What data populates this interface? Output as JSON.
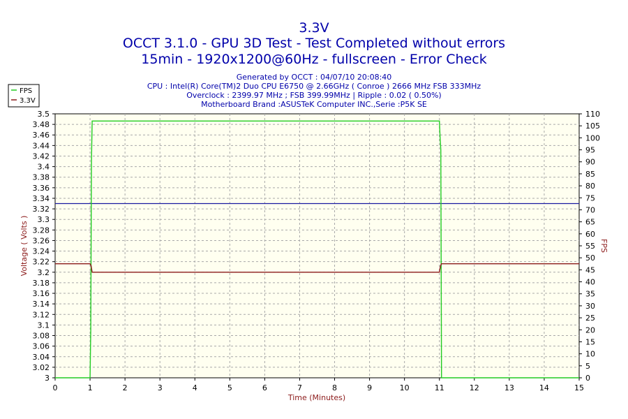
{
  "chart_data": {
    "type": "line",
    "title": "3.3V",
    "subtitle_lines": [
      "OCCT 3.1.0 - GPU 3D Test - Test Completed without errors",
      "15min - 1920x1200@60Hz - fullscreen - Error Check"
    ],
    "info_lines": [
      "Generated by OCCT : 04/07/10 20:08:40",
      "CPU : Intel(R) Core(TM)2 Duo CPU E6750 @ 2.66GHz ( Conroe ) 2666 MHz FSB 333MHz",
      "Overclock : 2399.97 MHz ; FSB 399.99MHz | Ripple : 0.02 ( 0.50%)",
      "Motherboard Brand :ASUSTeK Computer INC.,Serie :P5K SE"
    ],
    "xlabel": "Time (Minutes)",
    "ylabel": "Voltage ( Volts )",
    "y2label": "FPS",
    "xlim": [
      0,
      15
    ],
    "ylim": [
      3.0,
      3.5
    ],
    "y2lim": [
      0,
      110
    ],
    "xticks": [
      "0",
      "1",
      "2",
      "3",
      "4",
      "5",
      "6",
      "7",
      "8",
      "9",
      "10",
      "11",
      "12",
      "13",
      "14",
      "15"
    ],
    "yticks": [
      "3",
      "3.02",
      "3.04",
      "3.06",
      "3.08",
      "3.1",
      "3.12",
      "3.14",
      "3.16",
      "3.18",
      "3.2",
      "3.22",
      "3.24",
      "3.26",
      "3.28",
      "3.3",
      "3.32",
      "3.34",
      "3.36",
      "3.38",
      "3.4",
      "3.42",
      "3.44",
      "3.46",
      "3.48",
      "3.5"
    ],
    "y2ticks": [
      "0",
      "5",
      "10",
      "15",
      "20",
      "25",
      "30",
      "35",
      "40",
      "45",
      "50",
      "55",
      "60",
      "65",
      "70",
      "75",
      "80",
      "85",
      "90",
      "95",
      "100",
      "105",
      "110"
    ],
    "grid": true,
    "reference_line": {
      "y": 3.33,
      "color": "#1a1aa0"
    },
    "legend_position": "top-left",
    "series": [
      {
        "name": "FPS",
        "axis": "right",
        "color": "#22cc22",
        "x": [
          0,
          1.0,
          1.02,
          1.04,
          1.06,
          1.1,
          11.0,
          11.02,
          11.04,
          11.06,
          15
        ],
        "y": [
          0,
          0,
          20,
          90,
          107,
          107,
          107,
          100,
          95,
          0,
          0
        ]
      },
      {
        "name": "3.3V",
        "axis": "left",
        "color": "#8b1a1a",
        "x": [
          0,
          1.0,
          1.03,
          1.06,
          11.0,
          11.03,
          11.06,
          15
        ],
        "y": [
          3.216,
          3.216,
          3.212,
          3.2,
          3.2,
          3.212,
          3.216,
          3.216
        ]
      }
    ]
  },
  "colors": {
    "background": "#fffff0",
    "grid": "#a8a8a8",
    "title": "#0000aa",
    "axis_label": "#8b1a1a"
  }
}
